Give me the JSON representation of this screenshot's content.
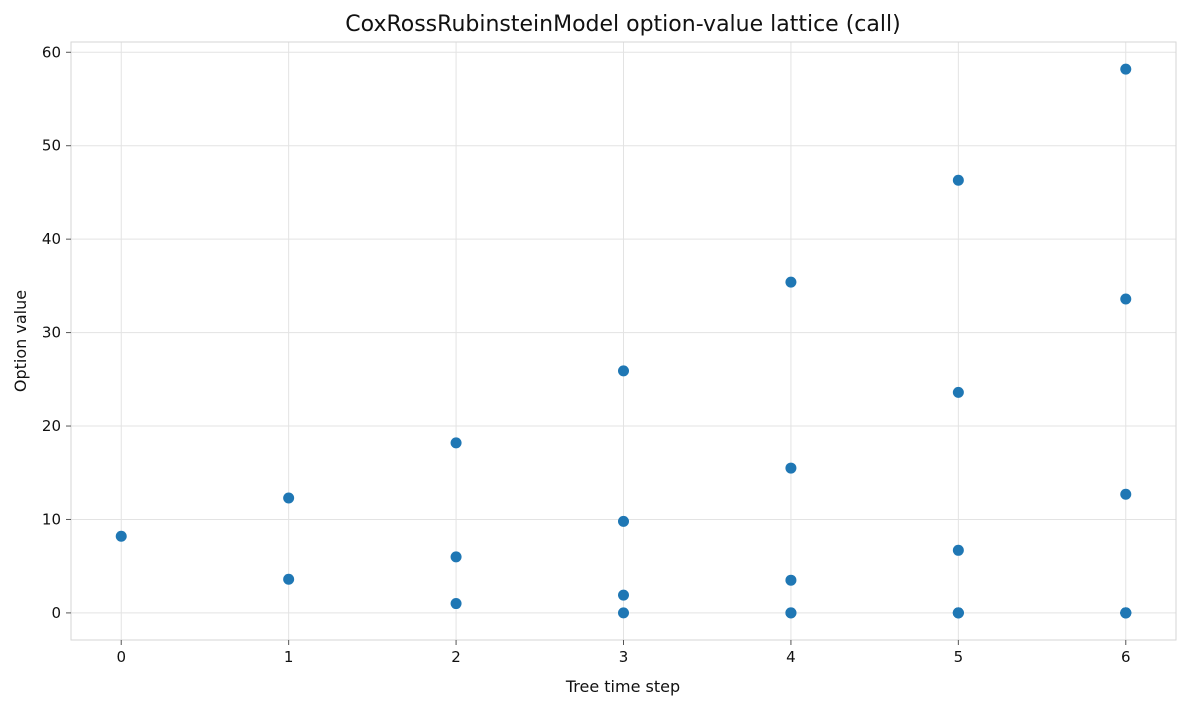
{
  "chart_data": {
    "type": "scatter",
    "title": "CoxRossRubinsteinModel option-value lattice (call)",
    "xlabel": "Tree time step",
    "ylabel": "Option value",
    "xlim": [
      -0.3,
      6.3
    ],
    "ylim": [
      -2.9,
      61.1
    ],
    "xticks": [
      0,
      1,
      2,
      3,
      4,
      5,
      6
    ],
    "yticks": [
      0,
      10,
      20,
      30,
      40,
      50,
      60
    ],
    "grid": true,
    "legend": "none",
    "color": "#1f77b4",
    "points": [
      {
        "x": 0,
        "y": 8.2
      },
      {
        "x": 1,
        "y": 12.3
      },
      {
        "x": 1,
        "y": 3.6
      },
      {
        "x": 2,
        "y": 18.2
      },
      {
        "x": 2,
        "y": 6.0
      },
      {
        "x": 2,
        "y": 1.0
      },
      {
        "x": 3,
        "y": 25.9
      },
      {
        "x": 3,
        "y": 9.8
      },
      {
        "x": 3,
        "y": 1.9
      },
      {
        "x": 3,
        "y": 0.0
      },
      {
        "x": 4,
        "y": 35.4
      },
      {
        "x": 4,
        "y": 15.5
      },
      {
        "x": 4,
        "y": 3.5
      },
      {
        "x": 4,
        "y": 0.0
      },
      {
        "x": 4,
        "y": 0.0
      },
      {
        "x": 5,
        "y": 46.3
      },
      {
        "x": 5,
        "y": 23.6
      },
      {
        "x": 5,
        "y": 6.7
      },
      {
        "x": 5,
        "y": 0.0
      },
      {
        "x": 5,
        "y": 0.0
      },
      {
        "x": 5,
        "y": 0.0
      },
      {
        "x": 6,
        "y": 58.2
      },
      {
        "x": 6,
        "y": 33.6
      },
      {
        "x": 6,
        "y": 12.7
      },
      {
        "x": 6,
        "y": 0.0
      },
      {
        "x": 6,
        "y": 0.0
      },
      {
        "x": 6,
        "y": 0.0
      },
      {
        "x": 6,
        "y": 0.0
      }
    ]
  }
}
